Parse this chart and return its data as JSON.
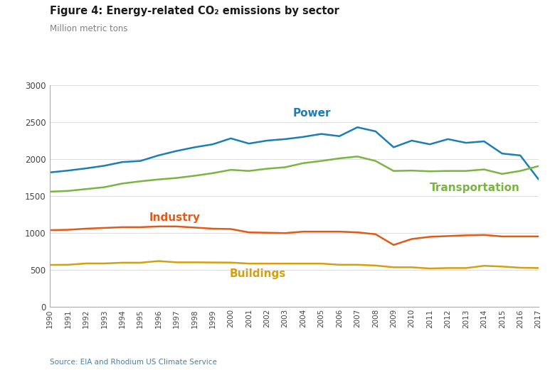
{
  "title": "Figure 4: Energy-related CO₂ emissions by sector",
  "subtitle": "Million metric tons",
  "source": "Source: EIA and Rhodium US Climate Service",
  "years": [
    1990,
    1991,
    1992,
    1993,
    1994,
    1995,
    1996,
    1997,
    1998,
    1999,
    2000,
    2001,
    2002,
    2003,
    2004,
    2005,
    2006,
    2007,
    2008,
    2009,
    2010,
    2011,
    2012,
    2013,
    2014,
    2015,
    2016,
    2017
  ],
  "power": [
    1820,
    1845,
    1875,
    1910,
    1960,
    1975,
    2050,
    2110,
    2160,
    2200,
    2280,
    2210,
    2250,
    2270,
    2300,
    2340,
    2310,
    2430,
    2375,
    2160,
    2250,
    2200,
    2270,
    2220,
    2240,
    2075,
    2050,
    1730
  ],
  "transportation": [
    1560,
    1570,
    1595,
    1620,
    1670,
    1700,
    1725,
    1745,
    1775,
    1810,
    1855,
    1840,
    1870,
    1890,
    1945,
    1975,
    2010,
    2035,
    1975,
    1840,
    1845,
    1835,
    1840,
    1840,
    1860,
    1800,
    1840,
    1905
  ],
  "industry": [
    1040,
    1045,
    1060,
    1070,
    1080,
    1080,
    1090,
    1090,
    1075,
    1060,
    1055,
    1010,
    1005,
    1000,
    1020,
    1020,
    1020,
    1010,
    985,
    840,
    920,
    950,
    960,
    970,
    975,
    955,
    955,
    955
  ],
  "buildings": [
    570,
    572,
    590,
    590,
    600,
    600,
    622,
    605,
    605,
    603,
    602,
    588,
    588,
    588,
    588,
    588,
    572,
    572,
    562,
    538,
    538,
    522,
    528,
    528,
    558,
    548,
    532,
    528
  ],
  "power_color": "#1b7eb6",
  "transportation_color": "#79b540",
  "industry_color": "#e05a18",
  "buildings_color": "#d4a010",
  "title_color": "#1a1a1a",
  "subtitle_color": "#808080",
  "source_color": "#4a7fa0",
  "ylim": [
    0,
    3000
  ],
  "yticks": [
    0,
    500,
    1000,
    1500,
    2000,
    2500,
    3000
  ],
  "line_width": 1.8,
  "background_color": "#ffffff"
}
